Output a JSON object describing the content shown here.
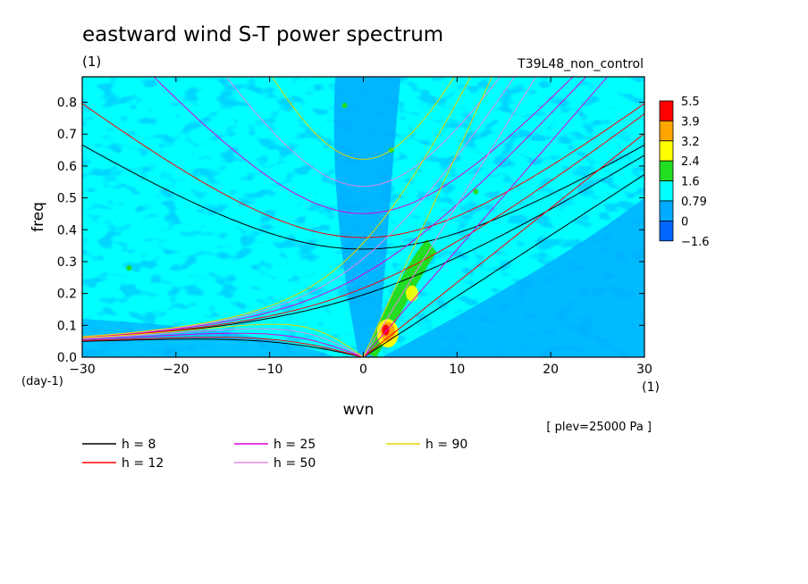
{
  "chart_data": {
    "type": "heatmap",
    "title": "eastward wind S-T power spectrum",
    "subtitle_left": "(1)",
    "subtitle_right": "T39L48_non_control",
    "xlabel": "wvn",
    "ylabel": "freq",
    "x_unit": "(1)",
    "y_unit": "(day-1)",
    "annotation": "[ plev=25000 Pa ]",
    "xlim": [
      -30,
      30
    ],
    "ylim": [
      0.0,
      0.88
    ],
    "x_ticks": [
      -30,
      -20,
      -10,
      0,
      10,
      20,
      30
    ],
    "y_ticks": [
      0.0,
      0.1,
      0.2,
      0.3,
      0.4,
      0.5,
      0.6,
      0.7,
      0.8
    ],
    "colorbar": {
      "labels": [
        "5.5",
        "3.9",
        "3.2",
        "2.4",
        "1.6",
        "0.79",
        "0",
        "-1.6"
      ],
      "colors": [
        "#ff0000",
        "#ffa500",
        "#ffff00",
        "#22dd22",
        "#00ffff",
        "#00aaff",
        "#0066ff",
        "#0033ff"
      ]
    },
    "dispersion_curves": [
      {
        "label": "h =  8",
        "h": 8,
        "color": "#000000"
      },
      {
        "label": "h = 12",
        "h": 12,
        "color": "#ff0000"
      },
      {
        "label": "h = 25",
        "h": 25,
        "color": "#dd00dd"
      },
      {
        "label": "h = 50",
        "h": 50,
        "color": "#dd88dd"
      },
      {
        "label": "h = 90",
        "h": 90,
        "color": "#e6d600"
      }
    ]
  }
}
